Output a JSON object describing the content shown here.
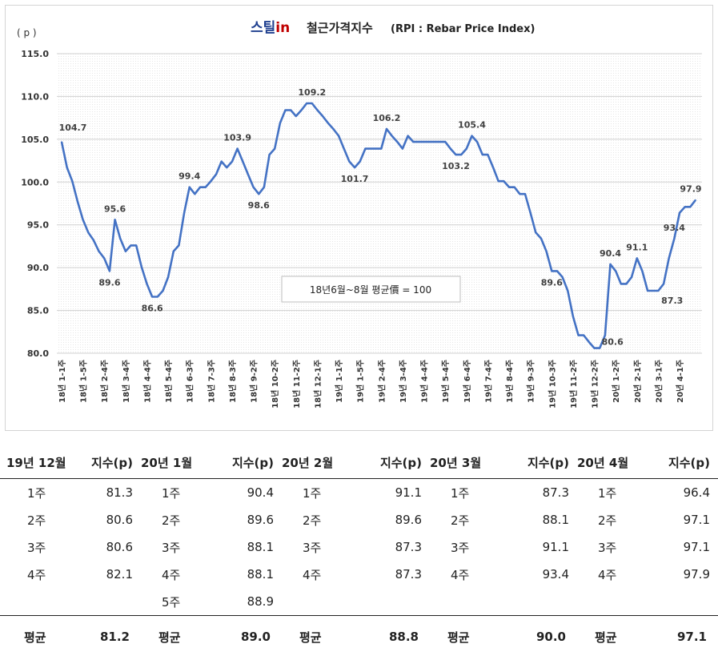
{
  "chart_title": {
    "brand_prefix": "스틸",
    "brand_suffix": "in",
    "main": "철근가격지수",
    "sub": "(RPI : Rebar Price Index)"
  },
  "unit_label": "( p )",
  "annotation": "18년6월~8월 평균價 = 100",
  "colors": {
    "line": "#4472c4",
    "brand_blue": "#1f3f8f",
    "brand_red": "#c00000",
    "plot_grid": "#d8d8d8"
  },
  "chart_data": {
    "type": "line",
    "title": "철근가격지수(RPI : Rebar Price Index)",
    "ylabel": "( p )",
    "ylim": [
      80.0,
      115.0
    ],
    "yticks": [
      "115.0",
      "110.0",
      "105.0",
      "100.0",
      "95.0",
      "90.0",
      "85.0",
      "80.0"
    ],
    "grid": true,
    "x_tick_labels": [
      "18년 1-1주",
      "18년 1-5주",
      "18년 2-4주",
      "18년 3-4주",
      "18년 4-4주",
      "18년 5-4주",
      "18년 6-3주",
      "18년 7-3주",
      "18년 8-3주",
      "18년 9-2주",
      "18년 10-2주",
      "18년 11-2주",
      "18년 12-1주",
      "19년 1-1주",
      "19년 1-5주",
      "19년 2-4주",
      "19년 3-4주",
      "19년 4-4주",
      "19년 5-4주",
      "19년 6-4주",
      "19년 7-4주",
      "19년 8-4주",
      "19년 9-3주",
      "19년 10-3주",
      "19년 11-2주",
      "19년 12-2주",
      "20년 1-2주",
      "20년 2-1주",
      "20년 3-1주",
      "20년 4-1주"
    ],
    "series": [
      {
        "values": [
          104.7,
          101.7,
          100.1,
          97.7,
          95.6,
          94.1,
          93.2,
          91.9,
          91.1,
          89.6,
          95.6,
          93.4,
          91.9,
          92.6,
          92.6,
          90.1,
          88.1,
          86.6,
          86.6,
          87.3,
          88.9,
          91.9,
          92.6,
          96.4,
          99.4,
          98.6,
          99.4,
          99.4,
          100.1,
          100.9,
          102.4,
          101.7,
          102.4,
          103.9,
          102.4,
          100.9,
          99.4,
          98.6,
          99.4,
          103.2,
          103.9,
          106.9,
          108.4,
          108.4,
          107.7,
          108.4,
          109.2,
          109.2,
          108.4,
          107.7,
          106.9,
          106.2,
          105.4,
          103.9,
          102.4,
          101.7,
          102.4,
          103.9,
          103.9,
          103.9,
          103.9,
          106.2,
          105.4,
          104.7,
          103.9,
          105.4,
          104.7,
          104.7,
          104.7,
          104.7,
          104.7,
          104.7,
          104.7,
          103.9,
          103.2,
          103.2,
          103.9,
          105.4,
          104.7,
          103.2,
          103.2,
          101.7,
          100.1,
          100.1,
          99.4,
          99.4,
          98.6,
          98.6,
          96.4,
          94.1,
          93.4,
          91.9,
          89.6,
          89.6,
          88.9,
          87.3,
          84.3,
          82.1,
          82.1,
          81.3,
          80.6,
          80.6,
          82.1,
          90.4,
          89.6,
          88.1,
          88.1,
          88.9,
          91.1,
          89.6,
          87.3,
          87.3,
          87.3,
          88.1,
          91.1,
          93.4,
          96.4,
          97.1,
          97.1,
          97.9
        ]
      }
    ],
    "data_labels": [
      {
        "index": 0,
        "text": "104.7"
      },
      {
        "index": 9,
        "text": "89.6"
      },
      {
        "index": 10,
        "text": "95.6"
      },
      {
        "index": 17,
        "text": "86.6"
      },
      {
        "index": 24,
        "text": "99.4"
      },
      {
        "index": 33,
        "text": "103.9"
      },
      {
        "index": 37,
        "text": "98.6"
      },
      {
        "index": 47,
        "text": "109.2"
      },
      {
        "index": 55,
        "text": "101.7"
      },
      {
        "index": 61,
        "text": "106.2"
      },
      {
        "index": 74,
        "text": "103.2"
      },
      {
        "index": 77,
        "text": "105.4"
      },
      {
        "index": 92,
        "text": "89.6"
      },
      {
        "index": 101,
        "text": "80.6"
      },
      {
        "index": 103,
        "text": "90.4"
      },
      {
        "index": 108,
        "text": "91.1"
      },
      {
        "index": 111,
        "text": "87.3"
      },
      {
        "index": 115,
        "text": "93.4"
      },
      {
        "index": 119,
        "text": "97.9"
      }
    ]
  },
  "table": {
    "headers": [
      {
        "period": "19년 12월",
        "value": "지수(p)"
      },
      {
        "period": "20년 1월",
        "value": "지수(p)"
      },
      {
        "period": "20년 2월",
        "value": "지수(p)"
      },
      {
        "period": "20년 3월",
        "value": "지수(p)"
      },
      {
        "period": "20년 4월",
        "value": "지수(p)"
      }
    ],
    "rows": [
      [
        {
          "w": "1주",
          "v": "81.3"
        },
        {
          "w": "1주",
          "v": "90.4"
        },
        {
          "w": "1주",
          "v": "91.1"
        },
        {
          "w": "1주",
          "v": "87.3"
        },
        {
          "w": "1주",
          "v": "96.4"
        }
      ],
      [
        {
          "w": "2주",
          "v": "80.6"
        },
        {
          "w": "2주",
          "v": "89.6"
        },
        {
          "w": "2주",
          "v": "89.6"
        },
        {
          "w": "2주",
          "v": "88.1"
        },
        {
          "w": "2주",
          "v": "97.1"
        }
      ],
      [
        {
          "w": "3주",
          "v": "80.6"
        },
        {
          "w": "3주",
          "v": "88.1"
        },
        {
          "w": "3주",
          "v": "87.3"
        },
        {
          "w": "3주",
          "v": "91.1"
        },
        {
          "w": "3주",
          "v": "97.1"
        }
      ],
      [
        {
          "w": "4주",
          "v": "82.1"
        },
        {
          "w": "4주",
          "v": "88.1"
        },
        {
          "w": "4주",
          "v": "87.3"
        },
        {
          "w": "4주",
          "v": "93.4"
        },
        {
          "w": "4주",
          "v": "97.9"
        }
      ],
      [
        {
          "w": "",
          "v": ""
        },
        {
          "w": "5주",
          "v": "88.9"
        },
        {
          "w": "",
          "v": ""
        },
        {
          "w": "",
          "v": ""
        },
        {
          "w": "",
          "v": ""
        }
      ]
    ],
    "averages": [
      {
        "label": "평균",
        "value": "81.2"
      },
      {
        "label": "평균",
        "value": "89.0"
      },
      {
        "label": "평균",
        "value": "88.8"
      },
      {
        "label": "평균",
        "value": "90.0"
      },
      {
        "label": "평균",
        "value": "97.1"
      }
    ]
  }
}
